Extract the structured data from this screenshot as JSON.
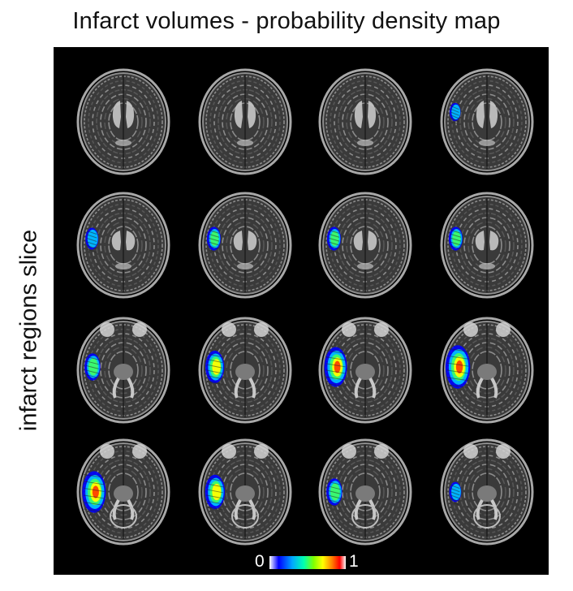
{
  "title": "Infarct volumes - probability density map",
  "ylabel": "infarct regions slice",
  "colorbar": {
    "min_label": "0",
    "max_label": "1",
    "colors": [
      "#ffffff",
      "#0000ff",
      "#00a8ff",
      "#00ffb0",
      "#80ff00",
      "#ffff00",
      "#ff8000",
      "#ff0000",
      "#ffffff"
    ]
  },
  "grid": {
    "rows": 4,
    "cols": 4
  },
  "slices": [
    {
      "level": 0,
      "infarct": 0
    },
    {
      "level": 0,
      "infarct": 0
    },
    {
      "level": 0,
      "infarct": 0
    },
    {
      "level": 0,
      "infarct": 0.15
    },
    {
      "level": 1,
      "infarct": 0.25
    },
    {
      "level": 1,
      "infarct": 0.3
    },
    {
      "level": 1,
      "infarct": 0.3
    },
    {
      "level": 1,
      "infarct": 0.3
    },
    {
      "level": 2,
      "infarct": 0.4
    },
    {
      "level": 2,
      "infarct": 0.55
    },
    {
      "level": 2,
      "infarct": 0.75
    },
    {
      "level": 2,
      "infarct": 0.85
    },
    {
      "level": 3,
      "infarct": 0.8
    },
    {
      "level": 3,
      "infarct": 0.6
    },
    {
      "level": 3,
      "infarct": 0.4
    },
    {
      "level": 3,
      "infarct": 0.2
    }
  ]
}
